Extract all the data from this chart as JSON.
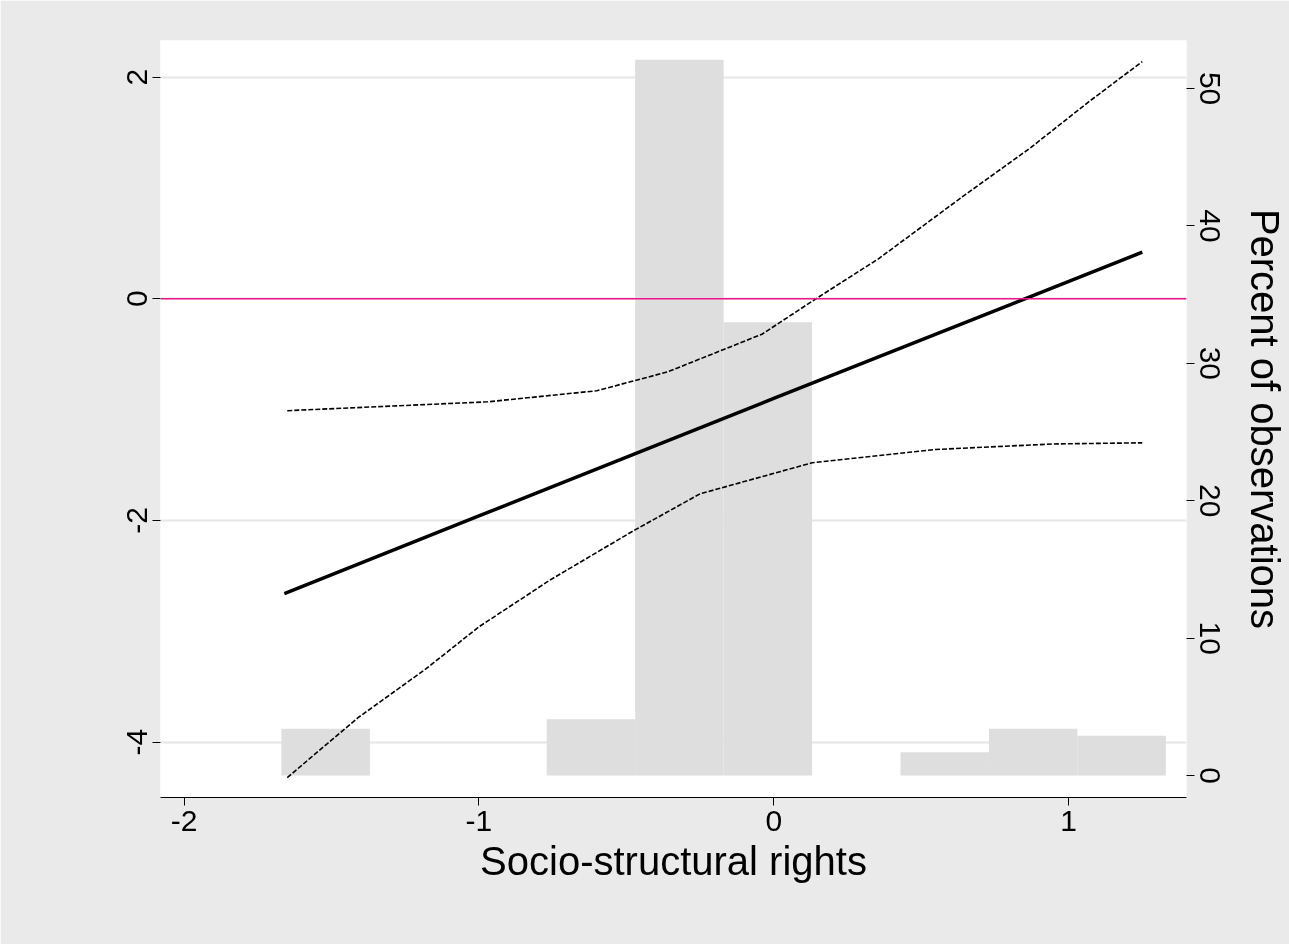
{
  "chart_data": {
    "type": "line",
    "xlabel": "Socio-structural rights",
    "y2label": "Percent of observations",
    "xlim": [
      -2.08,
      1.4
    ],
    "xticks": [
      -2,
      -1,
      0,
      1
    ],
    "ylim": [
      -4.5,
      2.33
    ],
    "yticks": [
      -4,
      -2,
      0,
      2
    ],
    "y2lim": [
      -1.6,
      53.5
    ],
    "y2ticks": [
      0,
      10,
      20,
      30,
      40,
      50
    ],
    "grid": "y",
    "ref_lines": [
      {
        "axis": "y",
        "value": 0,
        "color": "#f0148c"
      }
    ],
    "series": [
      {
        "type": "histogram",
        "axis": "y2",
        "color": "#dedede",
        "bins": [
          -1.67,
          -1.37,
          -1.07,
          -0.77,
          -0.47,
          -0.17,
          0.13,
          0.43,
          0.73,
          1.03,
          1.33
        ],
        "values": [
          3.4,
          0,
          0,
          4.1,
          52.1,
          33.0,
          0,
          1.7,
          3.4,
          2.9
        ]
      },
      {
        "color": "#000000",
        "line_style": "solid",
        "x": [
          -1.66,
          -1,
          0,
          1.25
        ],
        "values": [
          -2.66,
          -1.96,
          -0.9,
          0.42
        ]
      },
      {
        "color": "#000000",
        "line_style": "dashed",
        "x": [
          -1.65,
          -0.97,
          -0.6,
          -0.36,
          -0.04,
          0.155,
          0.355,
          0.65,
          0.87,
          1.07,
          1.25
        ],
        "values": [
          -1.01,
          -0.93,
          -0.83,
          -0.66,
          -0.32,
          0.02,
          0.36,
          0.94,
          1.36,
          1.78,
          2.14
        ]
      },
      {
        "color": "#000000",
        "line_style": "dashed",
        "x": [
          -1.65,
          -1.41,
          -1.18,
          -1,
          -0.76,
          -0.48,
          -0.25,
          0.13,
          0.55,
          0.95,
          1.25
        ],
        "values": [
          -4.32,
          -3.78,
          -3.34,
          -2.96,
          -2.54,
          -2.1,
          -1.76,
          -1.48,
          -1.36,
          -1.31,
          -1.3
        ]
      }
    ]
  }
}
